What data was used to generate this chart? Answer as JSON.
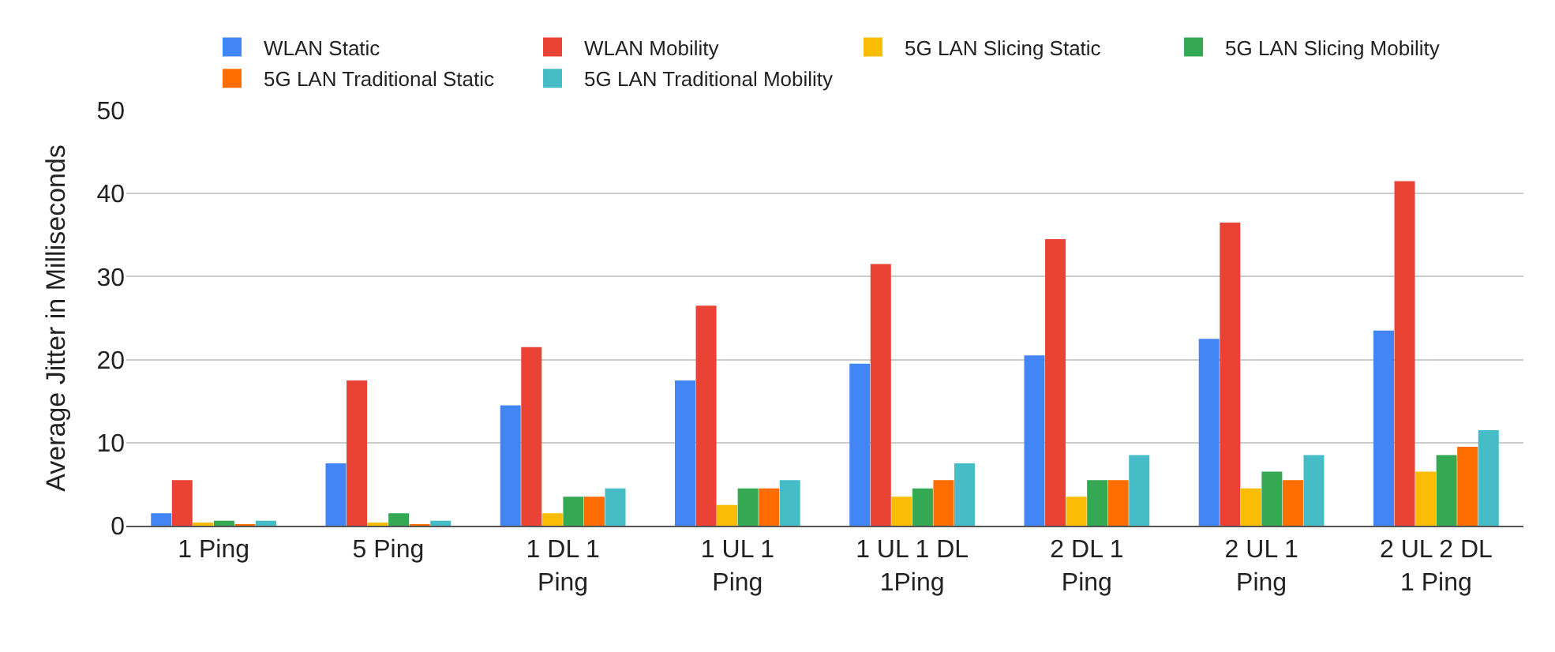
{
  "chart_data": {
    "type": "bar",
    "ylabel": "Average Jitter in Milliseconds",
    "categories": [
      "1 Ping",
      "5 Ping",
      "1 DL 1\nPing",
      "1 UL 1\nPing",
      "1 UL 1 DL\n1Ping",
      "2 DL 1\nPing",
      "2 UL 1\nPing",
      "2 UL 2 DL\n1 Ping"
    ],
    "series": [
      {
        "name": "WLAN Static",
        "color": "#4285f4",
        "values": [
          1.5,
          7.5,
          14.5,
          17.5,
          19.5,
          20.5,
          22.5,
          23.5
        ]
      },
      {
        "name": "WLAN Mobility",
        "color": "#ea4335",
        "values": [
          5.5,
          17.5,
          21.5,
          26.5,
          31.5,
          34.5,
          36.5,
          41.5
        ]
      },
      {
        "name": "5G LAN Slicing Static",
        "color": "#fbbc04",
        "values": [
          0.2,
          0.2,
          1.5,
          2.5,
          3.5,
          3.5,
          4.5,
          6.5
        ]
      },
      {
        "name": "5G LAN Slicing Mobility",
        "color": "#34a853",
        "values": [
          0.6,
          1.5,
          3.5,
          4.5,
          4.5,
          5.5,
          6.5,
          8.5
        ]
      },
      {
        "name": "5G LAN Traditional Static",
        "color": "#ff6d01",
        "values": [
          0.1,
          0.1,
          3.5,
          4.5,
          5.5,
          5.5,
          5.5,
          9.5
        ]
      },
      {
        "name": "5G LAN Traditional Mobility",
        "color": "#46bdc6",
        "values": [
          0.6,
          0.6,
          4.5,
          5.5,
          7.5,
          8.5,
          8.5,
          11.5
        ]
      }
    ],
    "ylim": [
      0,
      50
    ],
    "yticks": [
      0,
      10,
      20,
      30,
      40,
      50
    ],
    "grid": "y",
    "legend": "top"
  }
}
